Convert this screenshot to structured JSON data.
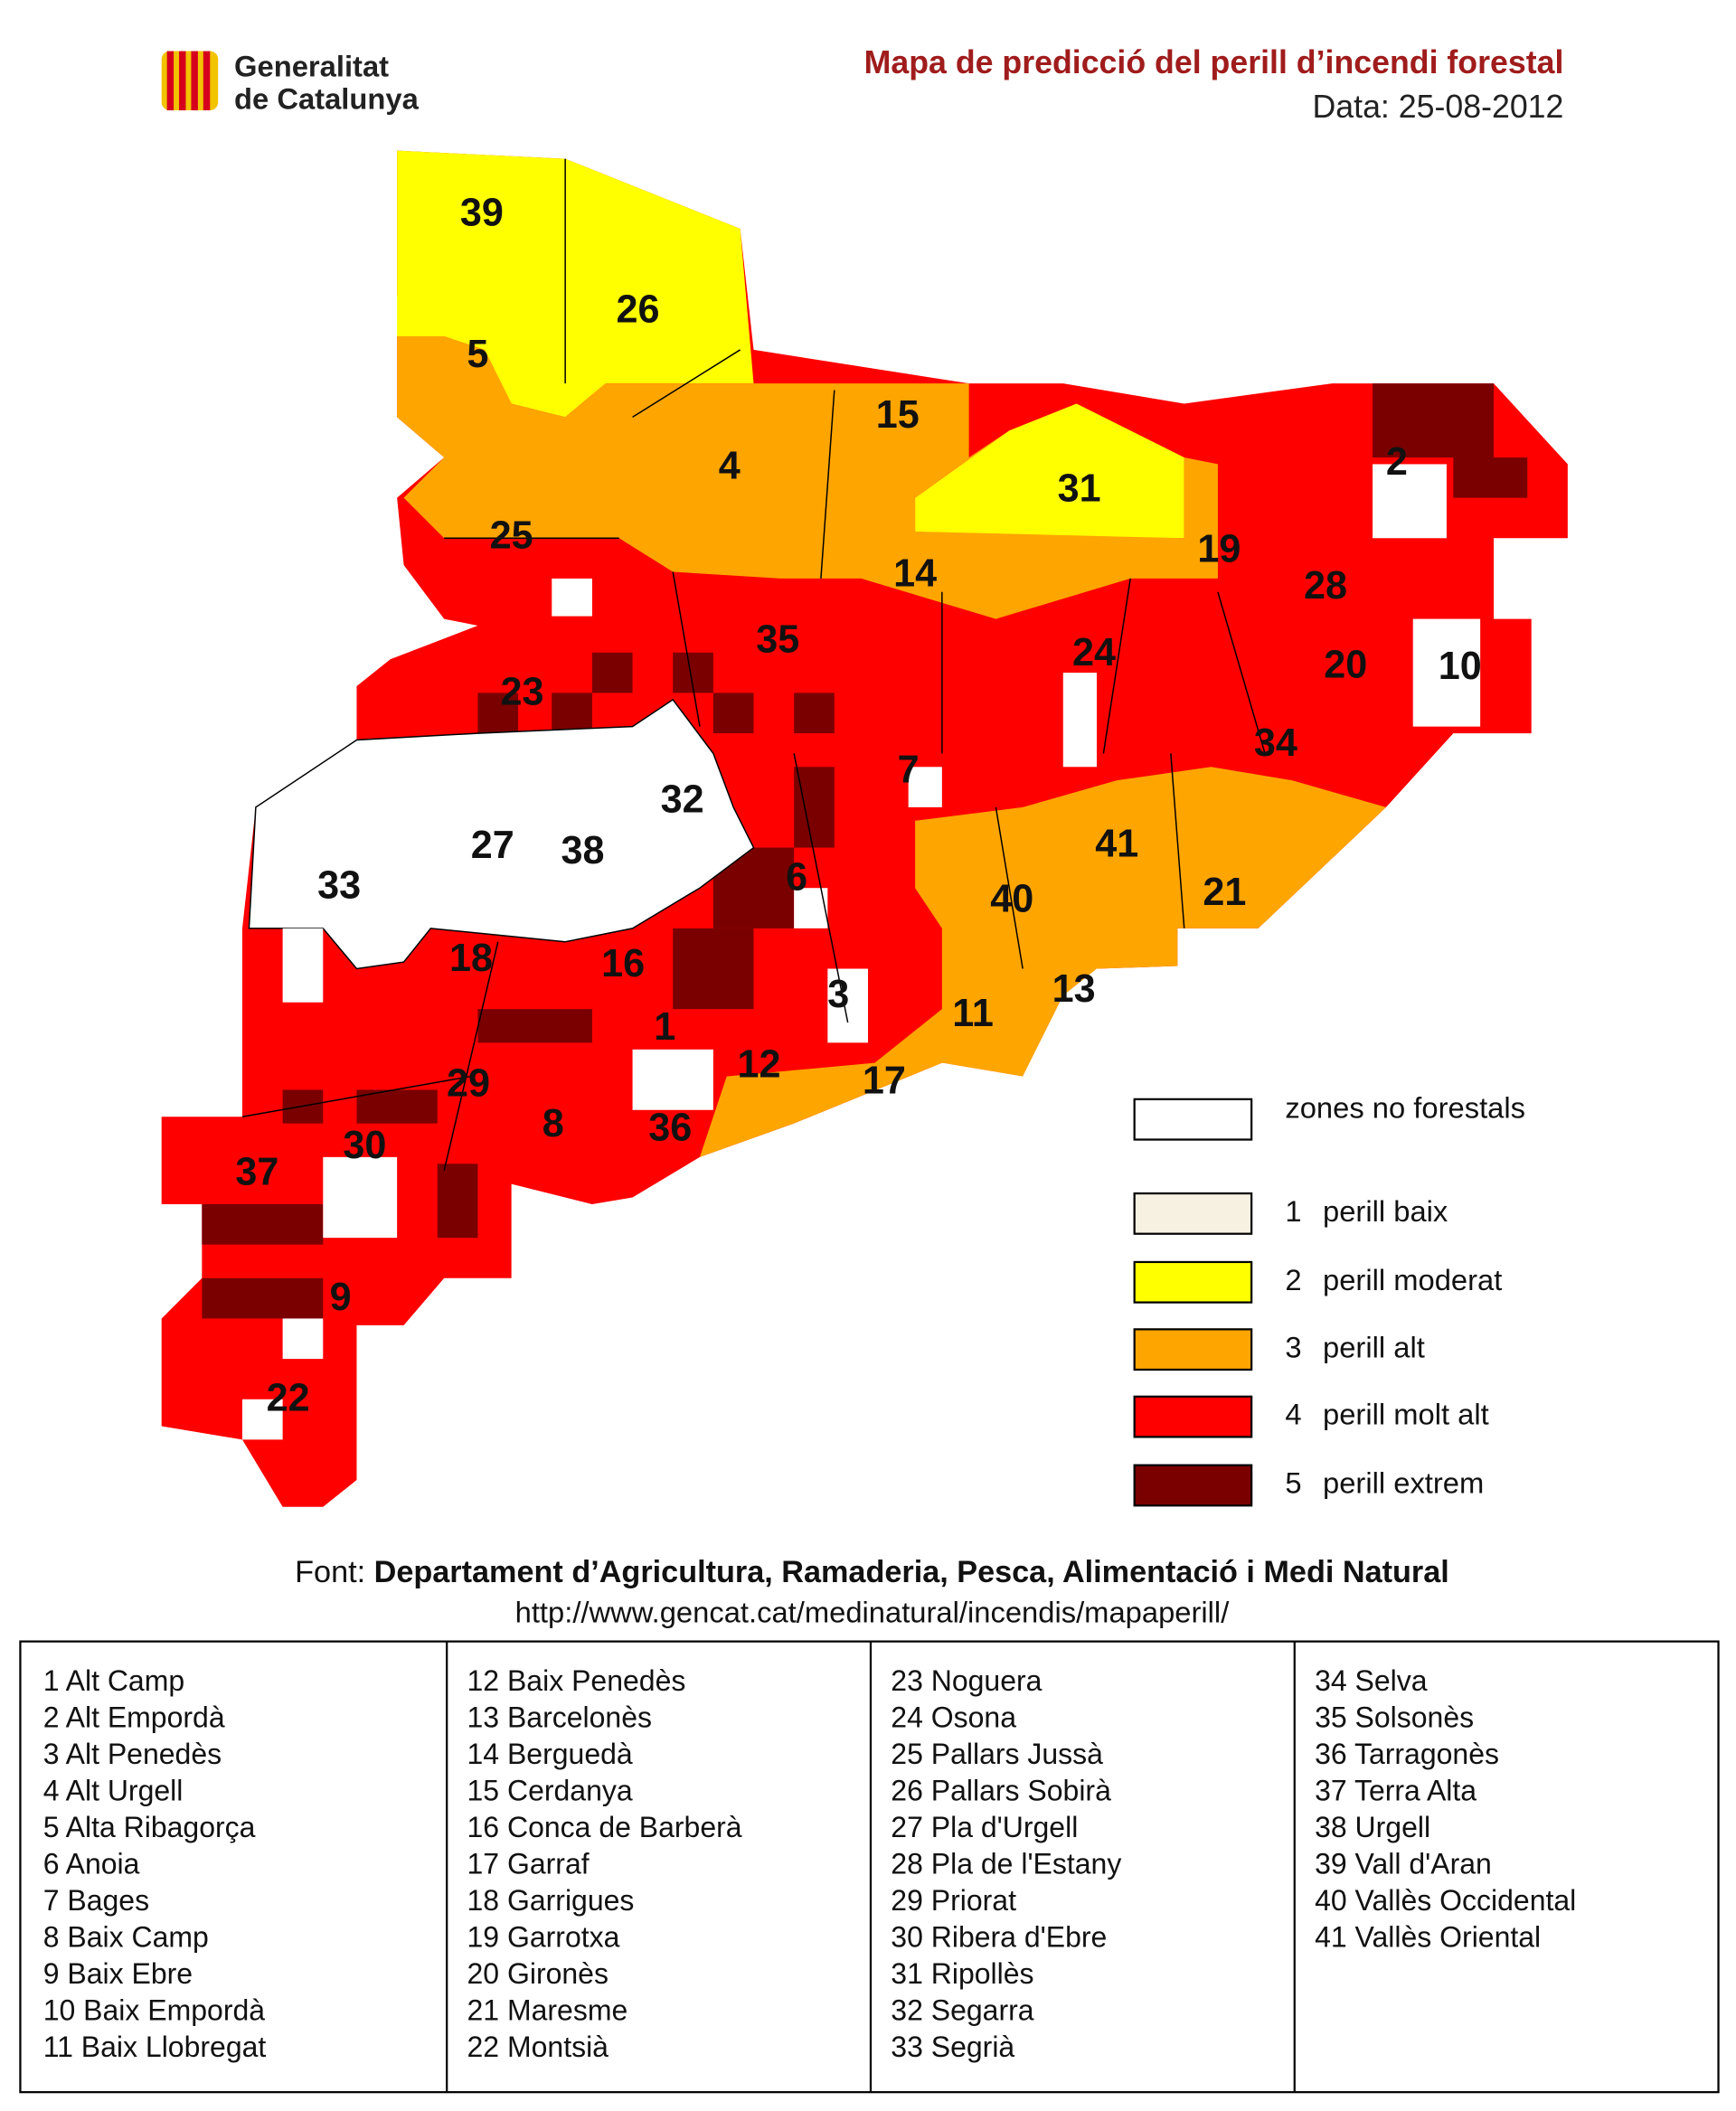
{
  "header": {
    "organization": [
      "Generalitat",
      "de Catalunya"
    ],
    "title": "Mapa de predicció del perill d’incendi forestal",
    "date": "Data: 25-08-2012"
  },
  "map": {
    "labels": [
      "39",
      "26",
      "5",
      "15",
      "4",
      "2",
      "31",
      "25",
      "19",
      "14",
      "28",
      "35",
      "24",
      "20",
      "10",
      "23",
      "34",
      "7",
      "32",
      "27",
      "38",
      "41",
      "6",
      "33",
      "21",
      "40",
      "18",
      "16",
      "13",
      "3",
      "11",
      "1",
      "12",
      "17",
      "29",
      "8",
      "36",
      "30",
      "37",
      "9",
      "22"
    ]
  },
  "legend": [
    {
      "key": "",
      "label": "zones no forestals",
      "color": "#ffffff"
    },
    {
      "key": "1",
      "label": "perill baix",
      "color": "#f7f1e1"
    },
    {
      "key": "2",
      "label": "perill moderat",
      "color": "#ffff00"
    },
    {
      "key": "3",
      "label": "perill alt",
      "color": "#ffa500"
    },
    {
      "key": "4",
      "label": "perill molt alt",
      "color": "#ff0000"
    },
    {
      "key": "5",
      "label": "perill extrem",
      "color": "#7a0000"
    }
  ],
  "source": {
    "prefix": "Font:",
    "name": "Departament d’Agricultura, Ramaderia, Pesca, Alimentació i Medi Natural",
    "url": "http://www.gencat.cat/medinatural/incendis/mapaperill/"
  },
  "table": {
    "columns": [
      [
        "1 Alt Camp",
        "2 Alt Empordà",
        "3 Alt Penedès",
        "4 Alt Urgell",
        "5 Alta Ribagorça",
        "6 Anoia",
        "7 Bages",
        "8 Baix Camp",
        "9 Baix Ebre",
        "10 Baix Empordà",
        "11 Baix Llobregat"
      ],
      [
        "12 Baix Penedès",
        "13 Barcelonès",
        "14 Berguedà",
        "15 Cerdanya",
        "16 Conca de Barberà",
        "17 Garraf",
        "18 Garrigues",
        "19 Garrotxa",
        "20 Gironès",
        "21 Maresme",
        "22 Montsià"
      ],
      [
        "23 Noguera",
        "24 Osona",
        "25 Pallars Jussà",
        "26 Pallars Sobirà",
        "27 Pla d'Urgell",
        "28 Pla de l'Estany",
        "29 Priorat",
        "30 Ribera d'Ebre",
        "31 Ripollès",
        "32 Segarra",
        "33 Segrià"
      ],
      [
        "34 Selva",
        "35 Solsonès",
        "36 Tarragonès",
        "37 Terra Alta",
        "38 Urgell",
        "39 Vall d'Aran",
        "40 Vallès Occidental",
        "41 Vallès Oriental"
      ]
    ]
  }
}
